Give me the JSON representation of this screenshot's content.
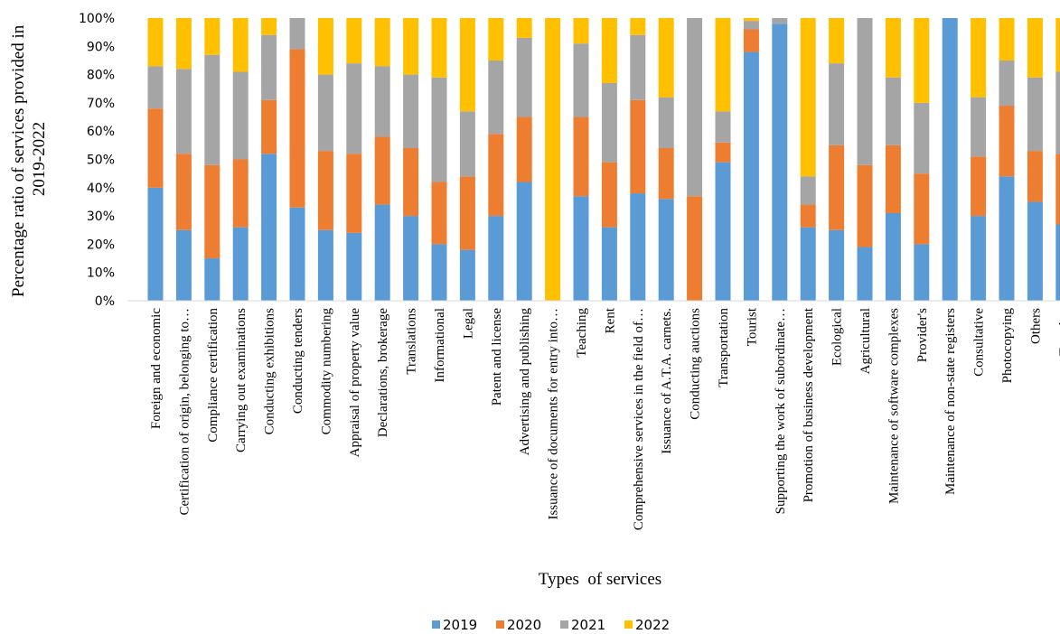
{
  "chart_data": {
    "type": "bar",
    "stacked": "percent",
    "xlabel": "Types  of services",
    "ylabel": "Percentage ratio of services provided in 2019-2022",
    "ylim": [
      0,
      100
    ],
    "yticks": [
      "0%",
      "10%",
      "20%",
      "30%",
      "40%",
      "50%",
      "60%",
      "70%",
      "80%",
      "90%",
      "100%"
    ],
    "legend_position": "bottom",
    "grid": false,
    "categories": [
      "Foreign and economic",
      "Certification of origin, belonging to…",
      "Compliance certification",
      "Carrying out examinations",
      "Conducting exhibitions",
      "Conducting tenders",
      "Commodity numbering",
      "Appraisal of property value",
      "Declarations, brokerage",
      "Translations",
      "Informational",
      "Legal",
      "Patent and license",
      "Advertising and publishing",
      "Issuance of documents for entry into…",
      "Teaching",
      "Rent",
      "Comprehensive services in the field of…",
      "Issuance of A.T.A. carnets.",
      "Conducting auctions",
      "Transportation",
      "Tourist",
      "Supporting the work of subordinate…",
      "Promotion of business development",
      "Ecological",
      "Agricultural",
      "Maintenance of software complexes",
      "Provider's",
      "Maintenance of non-state registers",
      "Consultative",
      "Photocopying",
      "Others",
      "Together"
    ],
    "series": [
      {
        "name": "2019",
        "color": "#5B9BD5",
        "values": [
          40,
          25,
          15,
          26,
          52,
          33,
          25,
          24,
          34,
          30,
          20,
          18,
          30,
          42,
          0,
          37,
          26,
          38,
          36,
          0,
          49,
          88,
          98,
          26,
          25,
          19,
          31,
          20,
          100,
          30,
          44,
          35,
          27
        ]
      },
      {
        "name": "2020",
        "color": "#ED7D31",
        "values": [
          28,
          27,
          33,
          24,
          19,
          56,
          28,
          28,
          24,
          24,
          22,
          26,
          29,
          23,
          0,
          28,
          23,
          33,
          18,
          37,
          7,
          8,
          0,
          8,
          30,
          29,
          24,
          25,
          0,
          21,
          25,
          18,
          25
        ]
      },
      {
        "name": "2021",
        "color": "#A5A5A5",
        "values": [
          15,
          30,
          39,
          31,
          23,
          11,
          27,
          32,
          25,
          26,
          37,
          23,
          26,
          28,
          0,
          26,
          28,
          23,
          18,
          63,
          11,
          3,
          2,
          10,
          29,
          52,
          24,
          25,
          0,
          21,
          16,
          26,
          29
        ]
      },
      {
        "name": "2022",
        "color": "#FFC000",
        "values": [
          17,
          18,
          13,
          19,
          6,
          0,
          20,
          16,
          17,
          20,
          21,
          33,
          15,
          7,
          100,
          9,
          23,
          6,
          28,
          0,
          33,
          1,
          0,
          56,
          16,
          0,
          21,
          30,
          0,
          28,
          15,
          21,
          19
        ]
      }
    ]
  }
}
